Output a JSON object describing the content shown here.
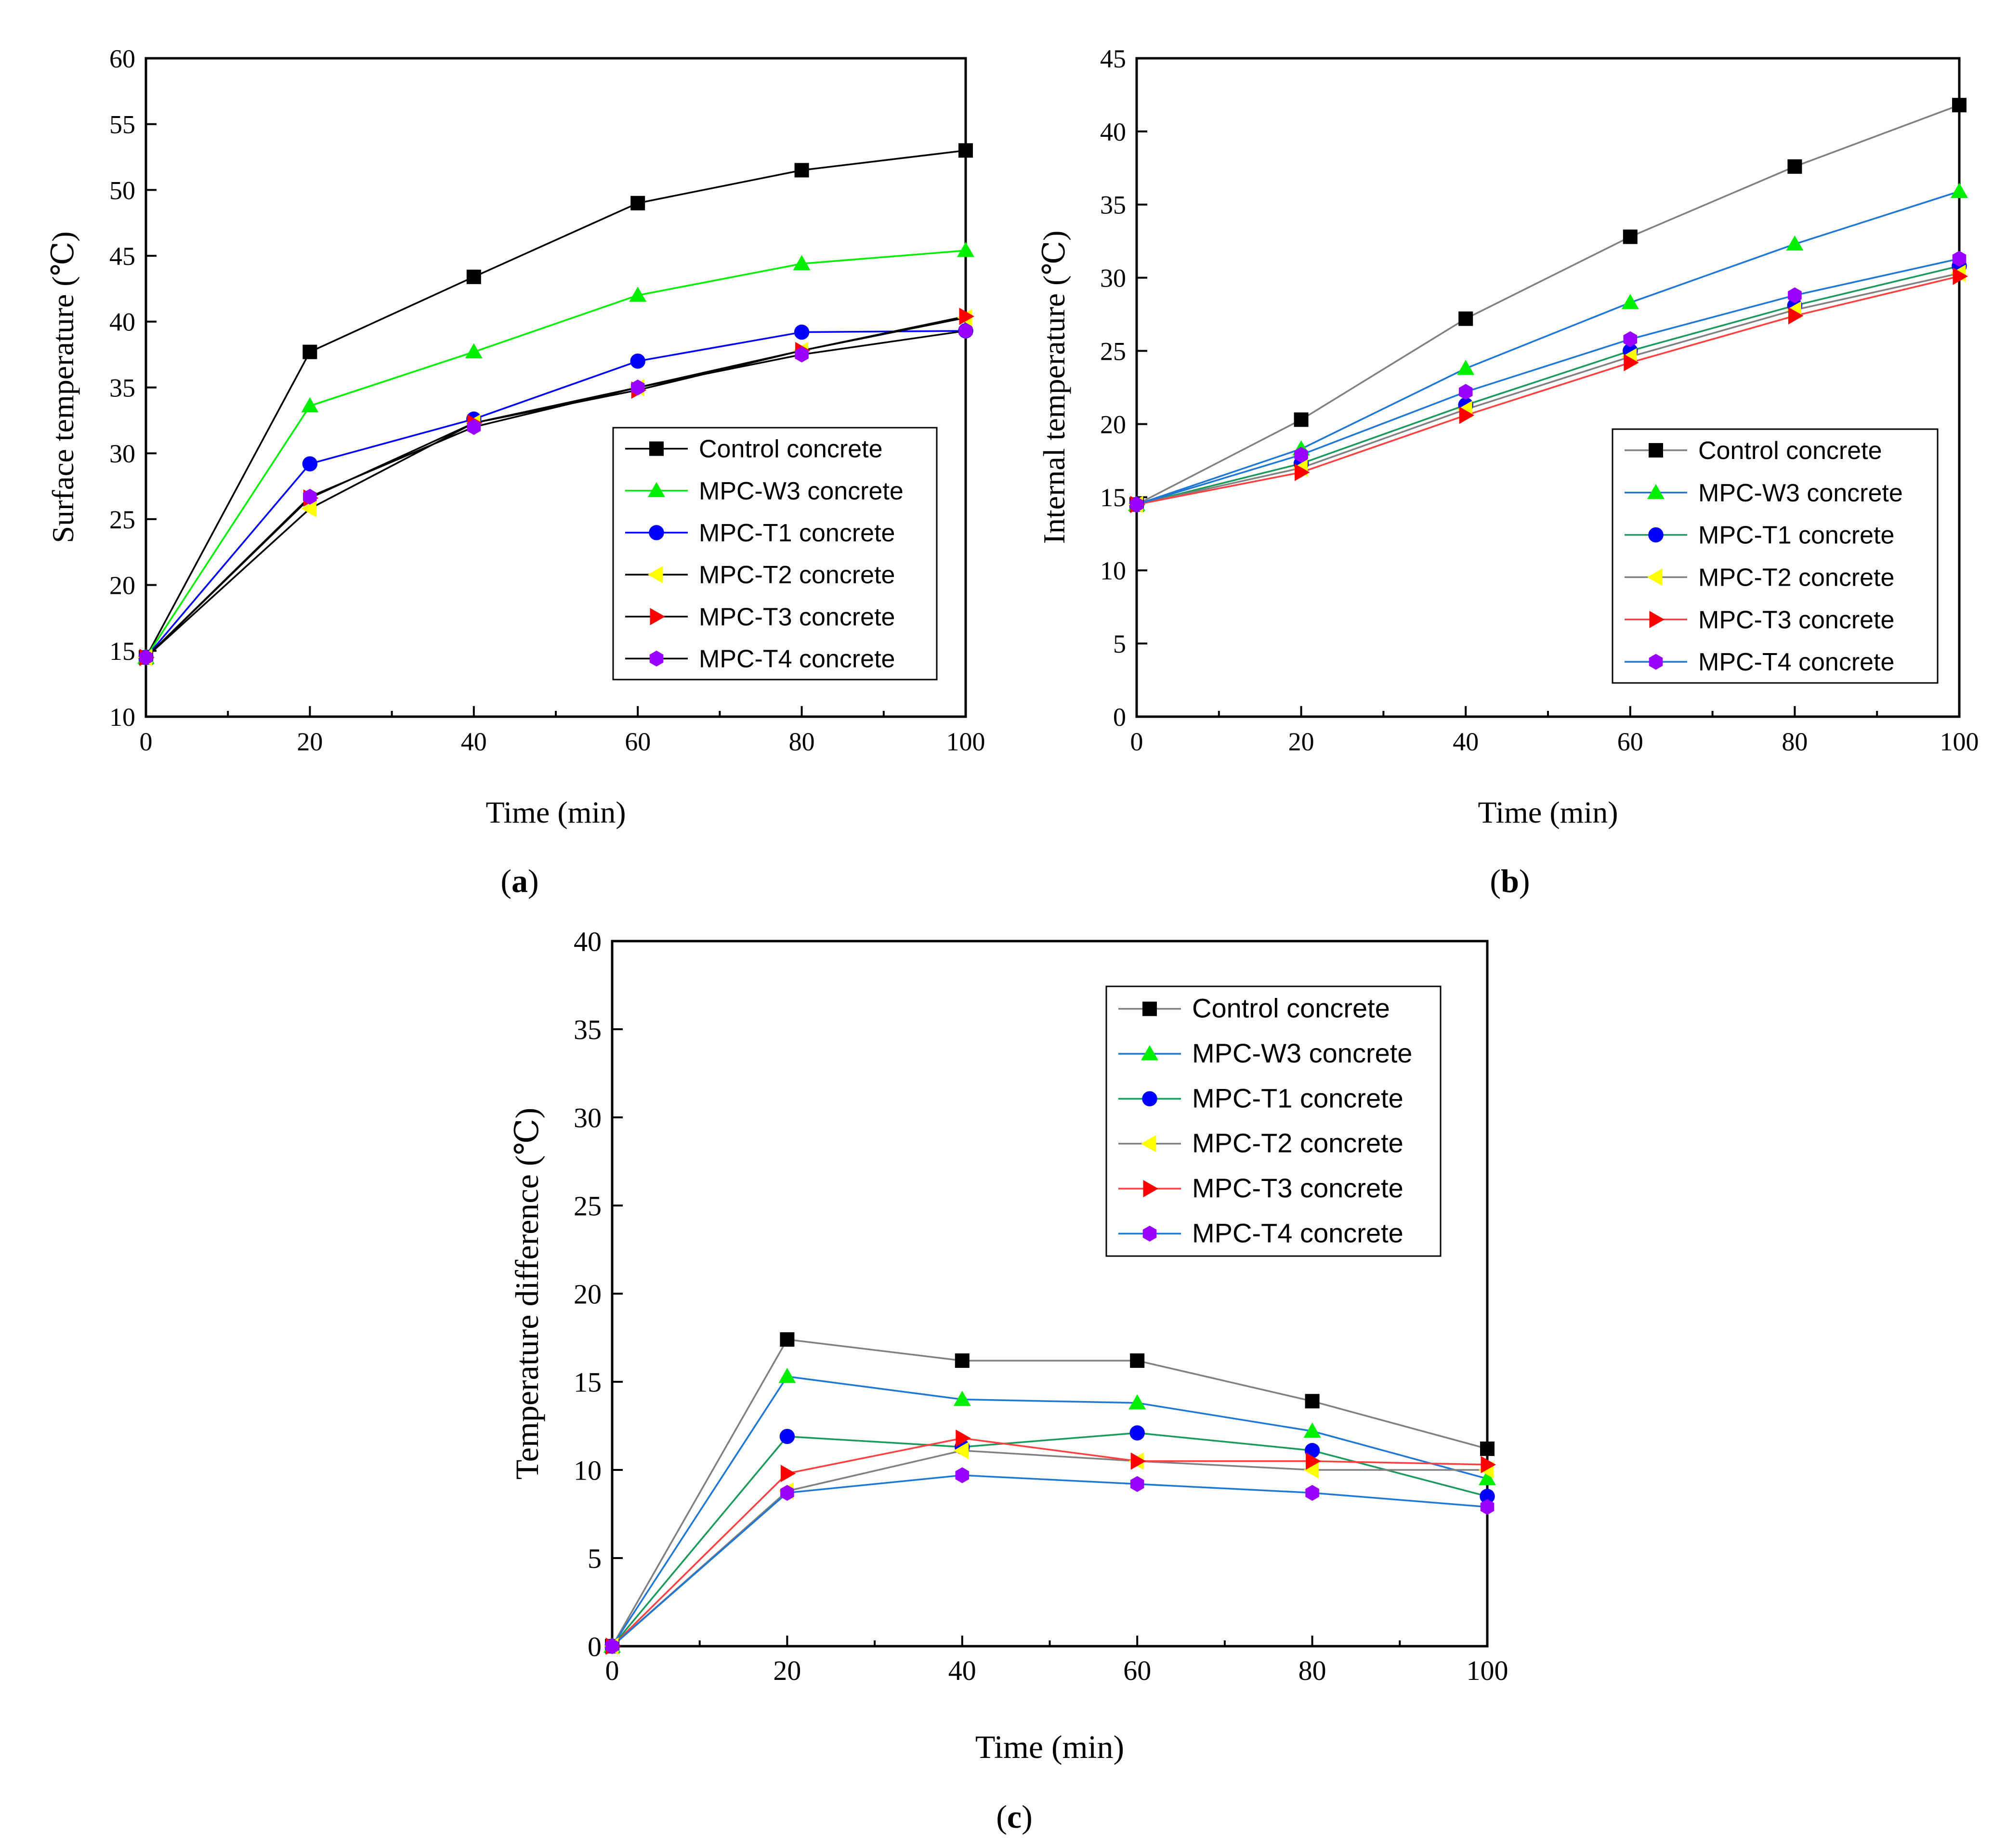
{
  "figure": {
    "panels": [
      {
        "label_open": "(",
        "label": "a",
        "label_close": ")"
      },
      {
        "label_open": "(",
        "label": "b",
        "label_close": ")"
      },
      {
        "label_open": "(",
        "label": "c",
        "label_close": ")"
      }
    ]
  },
  "chart_data": [
    {
      "type": "line",
      "panel": "a",
      "title": "",
      "xlabel": "Time (min)",
      "ylabel": "Surface temperature (℃)",
      "xlim": [
        0,
        100
      ],
      "ylim": [
        10,
        60
      ],
      "xticks": [
        0,
        20,
        40,
        60,
        80,
        100
      ],
      "yticks": [
        10,
        15,
        20,
        25,
        30,
        35,
        40,
        45,
        50,
        55,
        60
      ],
      "x": [
        0,
        20,
        40,
        60,
        80,
        100
      ],
      "legend_position": "center-right",
      "series": [
        {
          "name": "Control concrete",
          "marker": "square",
          "marker_color": "#000000",
          "line_color": "#000000",
          "values": [
            14.5,
            37.7,
            43.4,
            49.0,
            51.5,
            53.0
          ]
        },
        {
          "name": "MPC-W3 concrete",
          "marker": "triangle-up",
          "marker_color": "#00ee00",
          "line_color": "#00ee00",
          "values": [
            14.5,
            33.6,
            37.7,
            42.0,
            44.4,
            45.4
          ]
        },
        {
          "name": "MPC-T1 concrete",
          "marker": "circle",
          "marker_color": "#0000ff",
          "line_color": "#0000ff",
          "values": [
            14.5,
            29.2,
            32.6,
            37.0,
            39.2,
            39.3
          ]
        },
        {
          "name": "MPC-T2 concrete",
          "marker": "triangle-left",
          "marker_color": "#ffff00",
          "line_color": "#000000",
          "values": [
            14.5,
            25.8,
            32.3,
            35.0,
            37.8,
            40.3
          ]
        },
        {
          "name": "MPC-T3 concrete",
          "marker": "triangle-right",
          "marker_color": "#ff0000",
          "line_color": "#000000",
          "values": [
            14.5,
            26.6,
            32.3,
            34.8,
            37.8,
            40.4
          ]
        },
        {
          "name": "MPC-T4 concrete",
          "marker": "hexagon",
          "marker_color": "#9900ff",
          "line_color": "#000000",
          "values": [
            14.5,
            26.7,
            32.0,
            35.0,
            37.5,
            39.3
          ]
        }
      ]
    },
    {
      "type": "line",
      "panel": "b",
      "title": "",
      "xlabel": "Time (min)",
      "ylabel": "Internal temperature (℃)",
      "xlim": [
        0,
        100
      ],
      "ylim": [
        0,
        45
      ],
      "xticks": [
        0,
        20,
        40,
        60,
        80,
        100
      ],
      "yticks": [
        0,
        5,
        10,
        15,
        20,
        25,
        30,
        35,
        40,
        45
      ],
      "x": [
        0,
        20,
        40,
        60,
        80,
        100
      ],
      "legend_position": "bottom-right",
      "series": [
        {
          "name": "Control concrete",
          "marker": "square",
          "marker_color": "#000000",
          "line_color": "#808080",
          "values": [
            14.5,
            20.3,
            27.2,
            32.8,
            37.6,
            41.8
          ]
        },
        {
          "name": "MPC-W3 concrete",
          "marker": "triangle-up",
          "marker_color": "#00ee00",
          "line_color": "#1f77d4",
          "values": [
            14.5,
            18.3,
            23.8,
            28.3,
            32.3,
            35.9
          ]
        },
        {
          "name": "MPC-T1 concrete",
          "marker": "circle",
          "marker_color": "#0000ff",
          "line_color": "#1a9a5a",
          "values": [
            14.5,
            17.3,
            21.3,
            25.0,
            28.1,
            30.8
          ]
        },
        {
          "name": "MPC-T2 concrete",
          "marker": "triangle-left",
          "marker_color": "#ffff00",
          "line_color": "#808080",
          "values": [
            14.5,
            17.0,
            21.0,
            24.6,
            27.8,
            30.3
          ]
        },
        {
          "name": "MPC-T3 concrete",
          "marker": "triangle-right",
          "marker_color": "#ff0000",
          "line_color": "#ff4040",
          "values": [
            14.5,
            16.7,
            20.6,
            24.2,
            27.4,
            30.1
          ]
        },
        {
          "name": "MPC-T4 concrete",
          "marker": "hexagon",
          "marker_color": "#9900ff",
          "line_color": "#1f77d4",
          "values": [
            14.5,
            17.9,
            22.2,
            25.8,
            28.8,
            31.3
          ]
        }
      ]
    },
    {
      "type": "line",
      "panel": "c",
      "title": "",
      "xlabel": "Time (min)",
      "ylabel": "Temperature difference (℃)",
      "xlim": [
        0,
        100
      ],
      "ylim": [
        0,
        40
      ],
      "xticks": [
        0,
        20,
        40,
        60,
        80,
        100
      ],
      "yticks": [
        0,
        5,
        10,
        15,
        20,
        25,
        30,
        35,
        40
      ],
      "x": [
        0,
        20,
        40,
        60,
        80,
        100
      ],
      "legend_position": "top-right",
      "series": [
        {
          "name": "Control concrete",
          "marker": "square",
          "marker_color": "#000000",
          "line_color": "#808080",
          "values": [
            0,
            17.4,
            16.2,
            16.2,
            13.9,
            11.2
          ]
        },
        {
          "name": "MPC-W3 concrete",
          "marker": "triangle-up",
          "marker_color": "#00ee00",
          "line_color": "#1f77d4",
          "values": [
            0,
            15.3,
            14.0,
            13.8,
            12.2,
            9.5
          ]
        },
        {
          "name": "MPC-T1 concrete",
          "marker": "circle",
          "marker_color": "#0000ff",
          "line_color": "#1a9a5a",
          "values": [
            0,
            11.9,
            11.3,
            12.1,
            11.1,
            8.5
          ]
        },
        {
          "name": "MPC-T2 concrete",
          "marker": "triangle-left",
          "marker_color": "#ffff00",
          "line_color": "#808080",
          "values": [
            0,
            8.8,
            11.1,
            10.5,
            10.0,
            10.0
          ]
        },
        {
          "name": "MPC-T3 concrete",
          "marker": "triangle-right",
          "marker_color": "#ff0000",
          "line_color": "#ff4040",
          "values": [
            0,
            9.8,
            11.8,
            10.5,
            10.5,
            10.3
          ]
        },
        {
          "name": "MPC-T4 concrete",
          "marker": "hexagon",
          "marker_color": "#9900ff",
          "line_color": "#1f77d4",
          "values": [
            0,
            8.7,
            9.7,
            9.2,
            8.7,
            7.9
          ]
        }
      ]
    }
  ]
}
